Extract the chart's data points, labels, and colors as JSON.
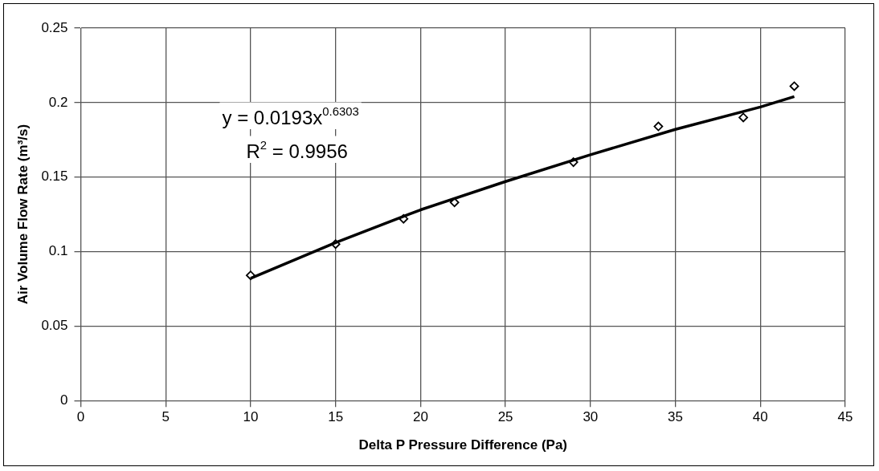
{
  "chart_data": {
    "type": "scatter",
    "xlabel": "Delta P Pressure Difference (Pa)",
    "ylabel": "Air Volume Flow Rate (m³/s)",
    "xlim": [
      0,
      45
    ],
    "xticks": [
      0,
      5,
      10,
      15,
      20,
      25,
      30,
      35,
      40,
      45
    ],
    "ylim": [
      0,
      0.25
    ],
    "yticks": [
      0,
      0.05,
      0.1,
      0.15,
      0.2,
      0.25
    ],
    "grid": true,
    "legend": false,
    "marker": "diamond",
    "annotations": [
      "y = 0.0193x$^{0.6303}$",
      "R$^{2}$ = 0.9956"
    ],
    "series": [
      {
        "color": "#000000",
        "x": [
          10,
          15,
          19,
          22,
          29,
          34,
          39,
          42
        ],
        "values": [
          0.084,
          0.105,
          0.122,
          0.133,
          0.16,
          0.184,
          0.19,
          0.211
        ]
      },
      {
        "type": "line",
        "color": "#000000",
        "marker": "none",
        "line_style": "solid",
        "x": [
          10,
          15,
          20,
          25,
          30,
          35,
          40,
          42
        ],
        "values": [
          0.082,
          0.106,
          0.128,
          0.147,
          0.165,
          0.182,
          0.197,
          0.204
        ]
      }
    ]
  }
}
